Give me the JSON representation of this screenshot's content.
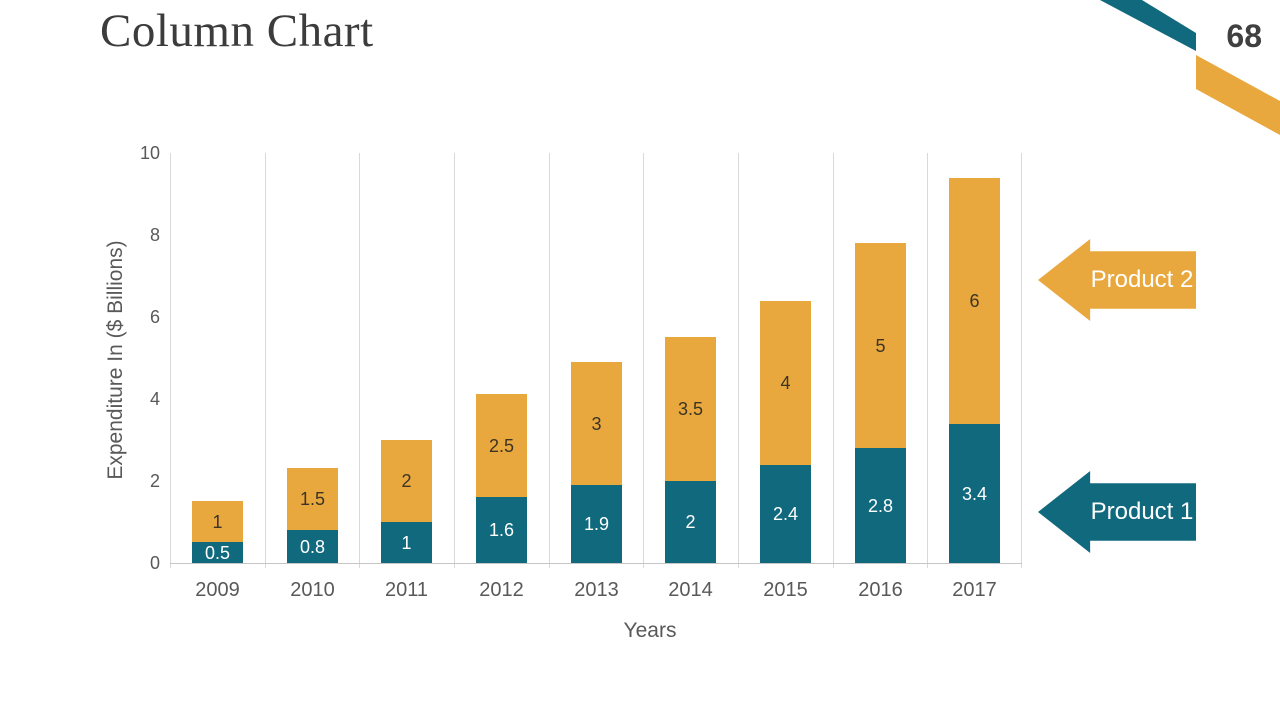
{
  "slide": {
    "title": "Column Chart",
    "page_number": "68"
  },
  "chart_data": {
    "type": "bar",
    "stacked": true,
    "categories": [
      "2009",
      "2010",
      "2011",
      "2012",
      "2013",
      "2014",
      "2015",
      "2016",
      "2017"
    ],
    "series": [
      {
        "name": "Product 1",
        "color": "#11697E",
        "label_color": "#FFFFFF",
        "values": [
          0.5,
          0.8,
          1,
          1.6,
          1.9,
          2,
          2.4,
          2.8,
          3.4
        ]
      },
      {
        "name": "Product 2",
        "color": "#E9A83D",
        "label_color": "#3C3425",
        "values": [
          1,
          1.5,
          2,
          2.5,
          3,
          3.5,
          4,
          5,
          6
        ]
      }
    ],
    "xlabel": "Years",
    "ylabel": "Expenditure In ($ Billions)",
    "ylim": [
      0,
      10
    ],
    "yticks": [
      0,
      2,
      4,
      6,
      8,
      10
    ],
    "grid": "vertical lines at category boundaries",
    "legend_position": "right",
    "legend": [
      {
        "label": "Product 2",
        "color": "#E9A83D"
      },
      {
        "label": "Product 1",
        "color": "#11697E"
      }
    ]
  },
  "decoration": {
    "ribbon_teal": "#11697E",
    "ribbon_gold": "#E9A83D"
  }
}
